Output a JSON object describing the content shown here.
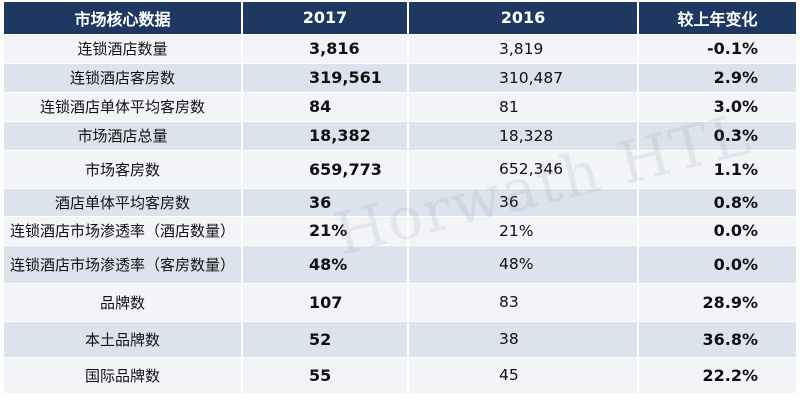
{
  "header": {
    "col1": "市场核心数据",
    "col2": "2017",
    "col3": "2016",
    "col4": "较上年变化"
  },
  "rows": [
    {
      "label": "连锁酒店数量",
      "v2017": "3,816",
      "v2016": "3,819",
      "change": "-0.1%"
    },
    {
      "label": "连锁酒店客房数",
      "v2017": "319,561",
      "v2016": "310,487",
      "change": "2.9%"
    },
    {
      "label": "连锁酒店单体平均客房数",
      "v2017": "84",
      "v2016": "81",
      "change": "3.0%"
    },
    {
      "label": "市场酒店总量",
      "v2017": "18,382",
      "v2016": "18,328",
      "change": "0.3%"
    },
    {
      "label": "市场客房数",
      "v2017": "659,773",
      "v2016": "652,346",
      "change": "1.1%"
    },
    {
      "label": "酒店单体平均客房数",
      "v2017": "36",
      "v2016": "36",
      "change": "0.8%"
    },
    {
      "label": "连锁酒店市场渗透率（酒店数量）",
      "v2017": "21%",
      "v2016": "21%",
      "change": "0.0%"
    },
    {
      "label": "连锁酒店市场渗透率（客房数量）",
      "v2017": "48%",
      "v2016": "48%",
      "change": "0.0%"
    },
    {
      "label": "品牌数",
      "v2017": "107",
      "v2016": "83",
      "change": "28.9%"
    },
    {
      "label": "本土品牌数",
      "v2017": "52",
      "v2016": "38",
      "change": "36.8%"
    },
    {
      "label": "国际品牌数",
      "v2017": "55",
      "v2016": "45",
      "change": "22.2%"
    }
  ],
  "watermark": "Horwath HTL",
  "colors": {
    "header_bg": "#1f3862",
    "row_light": "#f2f4f8",
    "row_dark": "#dde3ed"
  }
}
